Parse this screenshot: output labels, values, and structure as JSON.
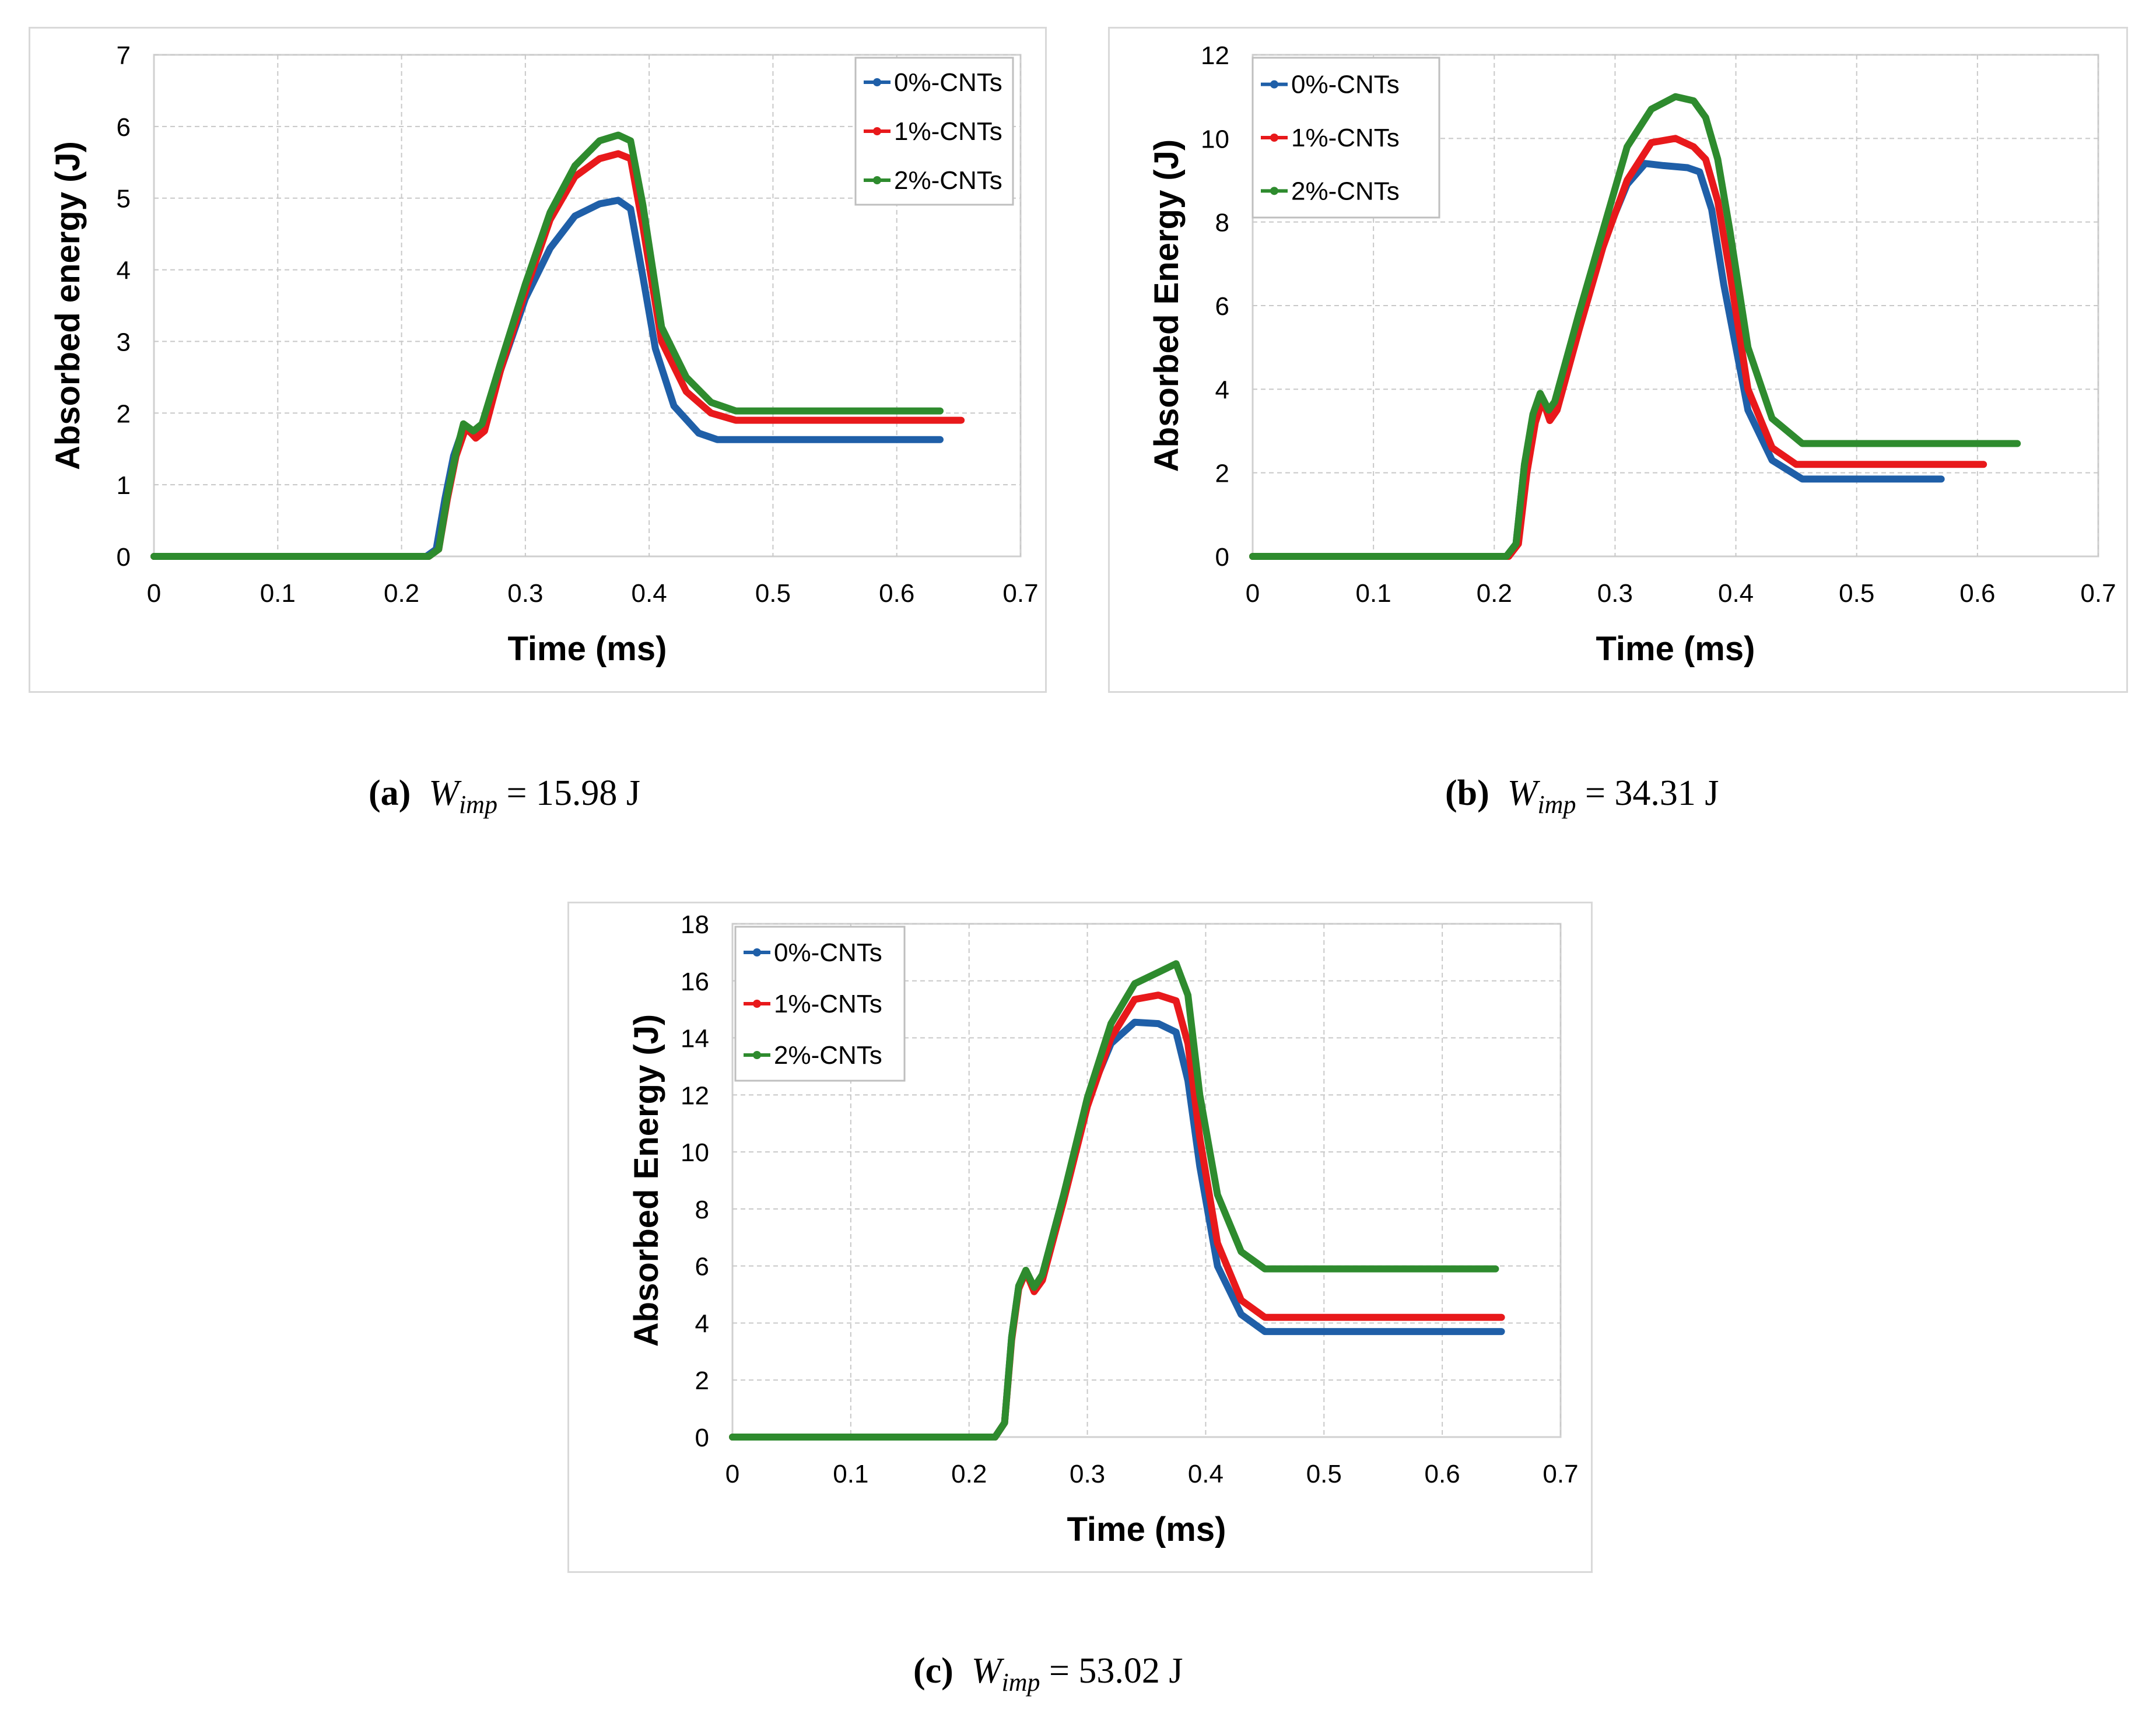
{
  "chart_data": [
    {
      "type": "line",
      "panel_label": "(a)",
      "caption_symbol": "W",
      "caption_subscript": "imp",
      "caption_value": "= 15.98 J",
      "xlabel": "Time (ms)",
      "ylabel": "Absorbed energy (J)",
      "xlim": [
        0,
        0.7
      ],
      "ylim": [
        0,
        7
      ],
      "xticks": [
        0,
        0.1,
        0.2,
        0.3,
        0.4,
        0.5,
        0.6,
        0.7
      ],
      "xtick_labels": [
        "0",
        "0.1",
        "0.2",
        "0.3",
        "0.4",
        "0.5",
        "0.6",
        "0.7"
      ],
      "yticks": [
        0,
        1,
        2,
        3,
        4,
        5,
        6,
        7
      ],
      "ytick_labels": [
        "0",
        "1",
        "2",
        "3",
        "4",
        "5",
        "6",
        "7"
      ],
      "grid": true,
      "legend_position": "top-right",
      "series": [
        {
          "name": "0%-CNTs",
          "color": "#1f5fa8",
          "x": [
            0,
            0.22,
            0.228,
            0.235,
            0.242,
            0.25,
            0.258,
            0.265,
            0.28,
            0.3,
            0.32,
            0.34,
            0.36,
            0.375,
            0.385,
            0.395,
            0.405,
            0.42,
            0.44,
            0.455,
            0.5,
            0.635
          ],
          "y": [
            0,
            0,
            0.1,
            0.8,
            1.4,
            1.8,
            1.7,
            1.8,
            2.6,
            3.6,
            4.3,
            4.75,
            4.92,
            4.97,
            4.85,
            3.9,
            2.9,
            2.1,
            1.72,
            1.63,
            1.63,
            1.63
          ]
        },
        {
          "name": "1%-CNTs",
          "color": "#e8191b",
          "x": [
            0,
            0.222,
            0.23,
            0.237,
            0.244,
            0.252,
            0.26,
            0.267,
            0.28,
            0.3,
            0.32,
            0.34,
            0.36,
            0.375,
            0.385,
            0.395,
            0.41,
            0.43,
            0.45,
            0.47,
            0.5,
            0.652
          ],
          "y": [
            0,
            0,
            0.1,
            0.8,
            1.4,
            1.8,
            1.65,
            1.75,
            2.6,
            3.7,
            4.7,
            5.3,
            5.55,
            5.62,
            5.55,
            4.6,
            3.0,
            2.3,
            2.0,
            1.9,
            1.9,
            1.9
          ]
        },
        {
          "name": "2%-CNTs",
          "color": "#2e8b2e",
          "x": [
            0,
            0.222,
            0.23,
            0.237,
            0.244,
            0.25,
            0.258,
            0.265,
            0.28,
            0.3,
            0.32,
            0.34,
            0.36,
            0.375,
            0.385,
            0.395,
            0.41,
            0.43,
            0.45,
            0.47,
            0.5,
            0.635
          ],
          "y": [
            0,
            0,
            0.1,
            0.85,
            1.45,
            1.85,
            1.75,
            1.85,
            2.7,
            3.8,
            4.8,
            5.45,
            5.8,
            5.88,
            5.8,
            4.9,
            3.2,
            2.5,
            2.15,
            2.03,
            2.03,
            2.03
          ]
        }
      ]
    },
    {
      "type": "line",
      "panel_label": "(b)",
      "caption_symbol": "W",
      "caption_subscript": "imp",
      "caption_value": "= 34.31 J",
      "xlabel": "Time (ms)",
      "ylabel": "Absorbed Energy (J)",
      "xlim": [
        0,
        0.7
      ],
      "ylim": [
        0,
        12
      ],
      "xticks": [
        0,
        0.1,
        0.2,
        0.3,
        0.4,
        0.5,
        0.6,
        0.7
      ],
      "xtick_labels": [
        "0",
        "0.1",
        "0.2",
        "0.3",
        "0.4",
        "0.5",
        "0.6",
        "0.7"
      ],
      "yticks": [
        0,
        2,
        4,
        6,
        8,
        10,
        12
      ],
      "ytick_labels": [
        "0",
        "2",
        "4",
        "6",
        "8",
        "10",
        "12"
      ],
      "grid": true,
      "legend_position": "top-left",
      "series": [
        {
          "name": "0%-CNTs",
          "color": "#1f5fa8",
          "x": [
            0,
            0.21,
            0.218,
            0.225,
            0.232,
            0.238,
            0.245,
            0.25,
            0.27,
            0.29,
            0.31,
            0.325,
            0.34,
            0.36,
            0.37,
            0.38,
            0.39,
            0.41,
            0.43,
            0.455,
            0.5,
            0.57
          ],
          "y": [
            0,
            0,
            0.3,
            2.2,
            3.3,
            3.85,
            3.4,
            3.6,
            5.5,
            7.5,
            8.9,
            9.4,
            9.35,
            9.3,
            9.2,
            8.3,
            6.5,
            3.5,
            2.3,
            1.85,
            1.85,
            1.85
          ]
        },
        {
          "name": "1%-CNTs",
          "color": "#e8191b",
          "x": [
            0,
            0.212,
            0.22,
            0.227,
            0.234,
            0.24,
            0.246,
            0.252,
            0.27,
            0.29,
            0.31,
            0.33,
            0.35,
            0.365,
            0.375,
            0.385,
            0.395,
            0.41,
            0.43,
            0.45,
            0.5,
            0.605
          ],
          "y": [
            0,
            0,
            0.3,
            2.0,
            3.2,
            3.75,
            3.25,
            3.5,
            5.4,
            7.4,
            9.0,
            9.9,
            10.0,
            9.8,
            9.5,
            8.5,
            6.8,
            4.0,
            2.6,
            2.2,
            2.2,
            2.2
          ]
        },
        {
          "name": "2%-CNTs",
          "color": "#2e8b2e",
          "x": [
            0,
            0.21,
            0.218,
            0.225,
            0.232,
            0.238,
            0.245,
            0.25,
            0.27,
            0.29,
            0.31,
            0.33,
            0.35,
            0.365,
            0.375,
            0.385,
            0.395,
            0.41,
            0.43,
            0.455,
            0.5,
            0.633
          ],
          "y": [
            0,
            0,
            0.3,
            2.2,
            3.4,
            3.9,
            3.5,
            3.7,
            5.8,
            7.8,
            9.8,
            10.7,
            11.0,
            10.9,
            10.5,
            9.5,
            7.8,
            5.0,
            3.3,
            2.7,
            2.7,
            2.7
          ]
        }
      ]
    },
    {
      "type": "line",
      "panel_label": "(c)",
      "caption_symbol": "W",
      "caption_subscript": "imp",
      "caption_value": "= 53.02 J",
      "xlabel": "Time (ms)",
      "ylabel": "Absorbed Energy (J)",
      "xlim": [
        0,
        0.7
      ],
      "ylim": [
        0,
        18
      ],
      "xticks": [
        0,
        0.1,
        0.2,
        0.3,
        0.4,
        0.5,
        0.6,
        0.7
      ],
      "xtick_labels": [
        "0",
        "0.1",
        "0.2",
        "0.3",
        "0.4",
        "0.5",
        "0.6",
        "0.7"
      ],
      "yticks": [
        0,
        2,
        4,
        6,
        8,
        10,
        12,
        14,
        16,
        18
      ],
      "ytick_labels": [
        "0",
        "2",
        "4",
        "6",
        "8",
        "10",
        "12",
        "14",
        "16",
        "18"
      ],
      "grid": true,
      "legend_position": "top-left",
      "series": [
        {
          "name": "0%-CNTs",
          "color": "#1f5fa8",
          "x": [
            0,
            0.222,
            0.23,
            0.236,
            0.242,
            0.248,
            0.255,
            0.262,
            0.28,
            0.3,
            0.32,
            0.34,
            0.36,
            0.375,
            0.385,
            0.395,
            0.41,
            0.43,
            0.45,
            0.5,
            0.65
          ],
          "y": [
            0,
            0,
            0.5,
            3.5,
            5.3,
            5.8,
            5.2,
            5.7,
            8.5,
            11.8,
            13.8,
            14.55,
            14.5,
            14.2,
            12.5,
            9.5,
            6.0,
            4.3,
            3.7,
            3.7,
            3.7
          ]
        },
        {
          "name": "1%-CNTs",
          "color": "#e8191b",
          "x": [
            0,
            0.222,
            0.23,
            0.236,
            0.242,
            0.248,
            0.255,
            0.262,
            0.28,
            0.3,
            0.32,
            0.34,
            0.36,
            0.375,
            0.385,
            0.395,
            0.41,
            0.43,
            0.45,
            0.5,
            0.65
          ],
          "y": [
            0,
            0,
            0.5,
            3.4,
            5.2,
            5.8,
            5.1,
            5.5,
            8.3,
            11.6,
            14.0,
            15.35,
            15.5,
            15.3,
            13.8,
            10.5,
            6.8,
            4.8,
            4.2,
            4.2,
            4.2
          ]
        },
        {
          "name": "2%-CNTs",
          "color": "#2e8b2e",
          "x": [
            0,
            0.222,
            0.23,
            0.236,
            0.242,
            0.248,
            0.255,
            0.262,
            0.28,
            0.3,
            0.32,
            0.34,
            0.36,
            0.375,
            0.385,
            0.395,
            0.41,
            0.43,
            0.45,
            0.5,
            0.645
          ],
          "y": [
            0,
            0,
            0.5,
            3.5,
            5.3,
            5.85,
            5.25,
            5.7,
            8.5,
            11.9,
            14.5,
            15.9,
            16.3,
            16.6,
            15.5,
            12.0,
            8.5,
            6.5,
            5.9,
            5.9,
            5.9
          ]
        }
      ]
    }
  ]
}
